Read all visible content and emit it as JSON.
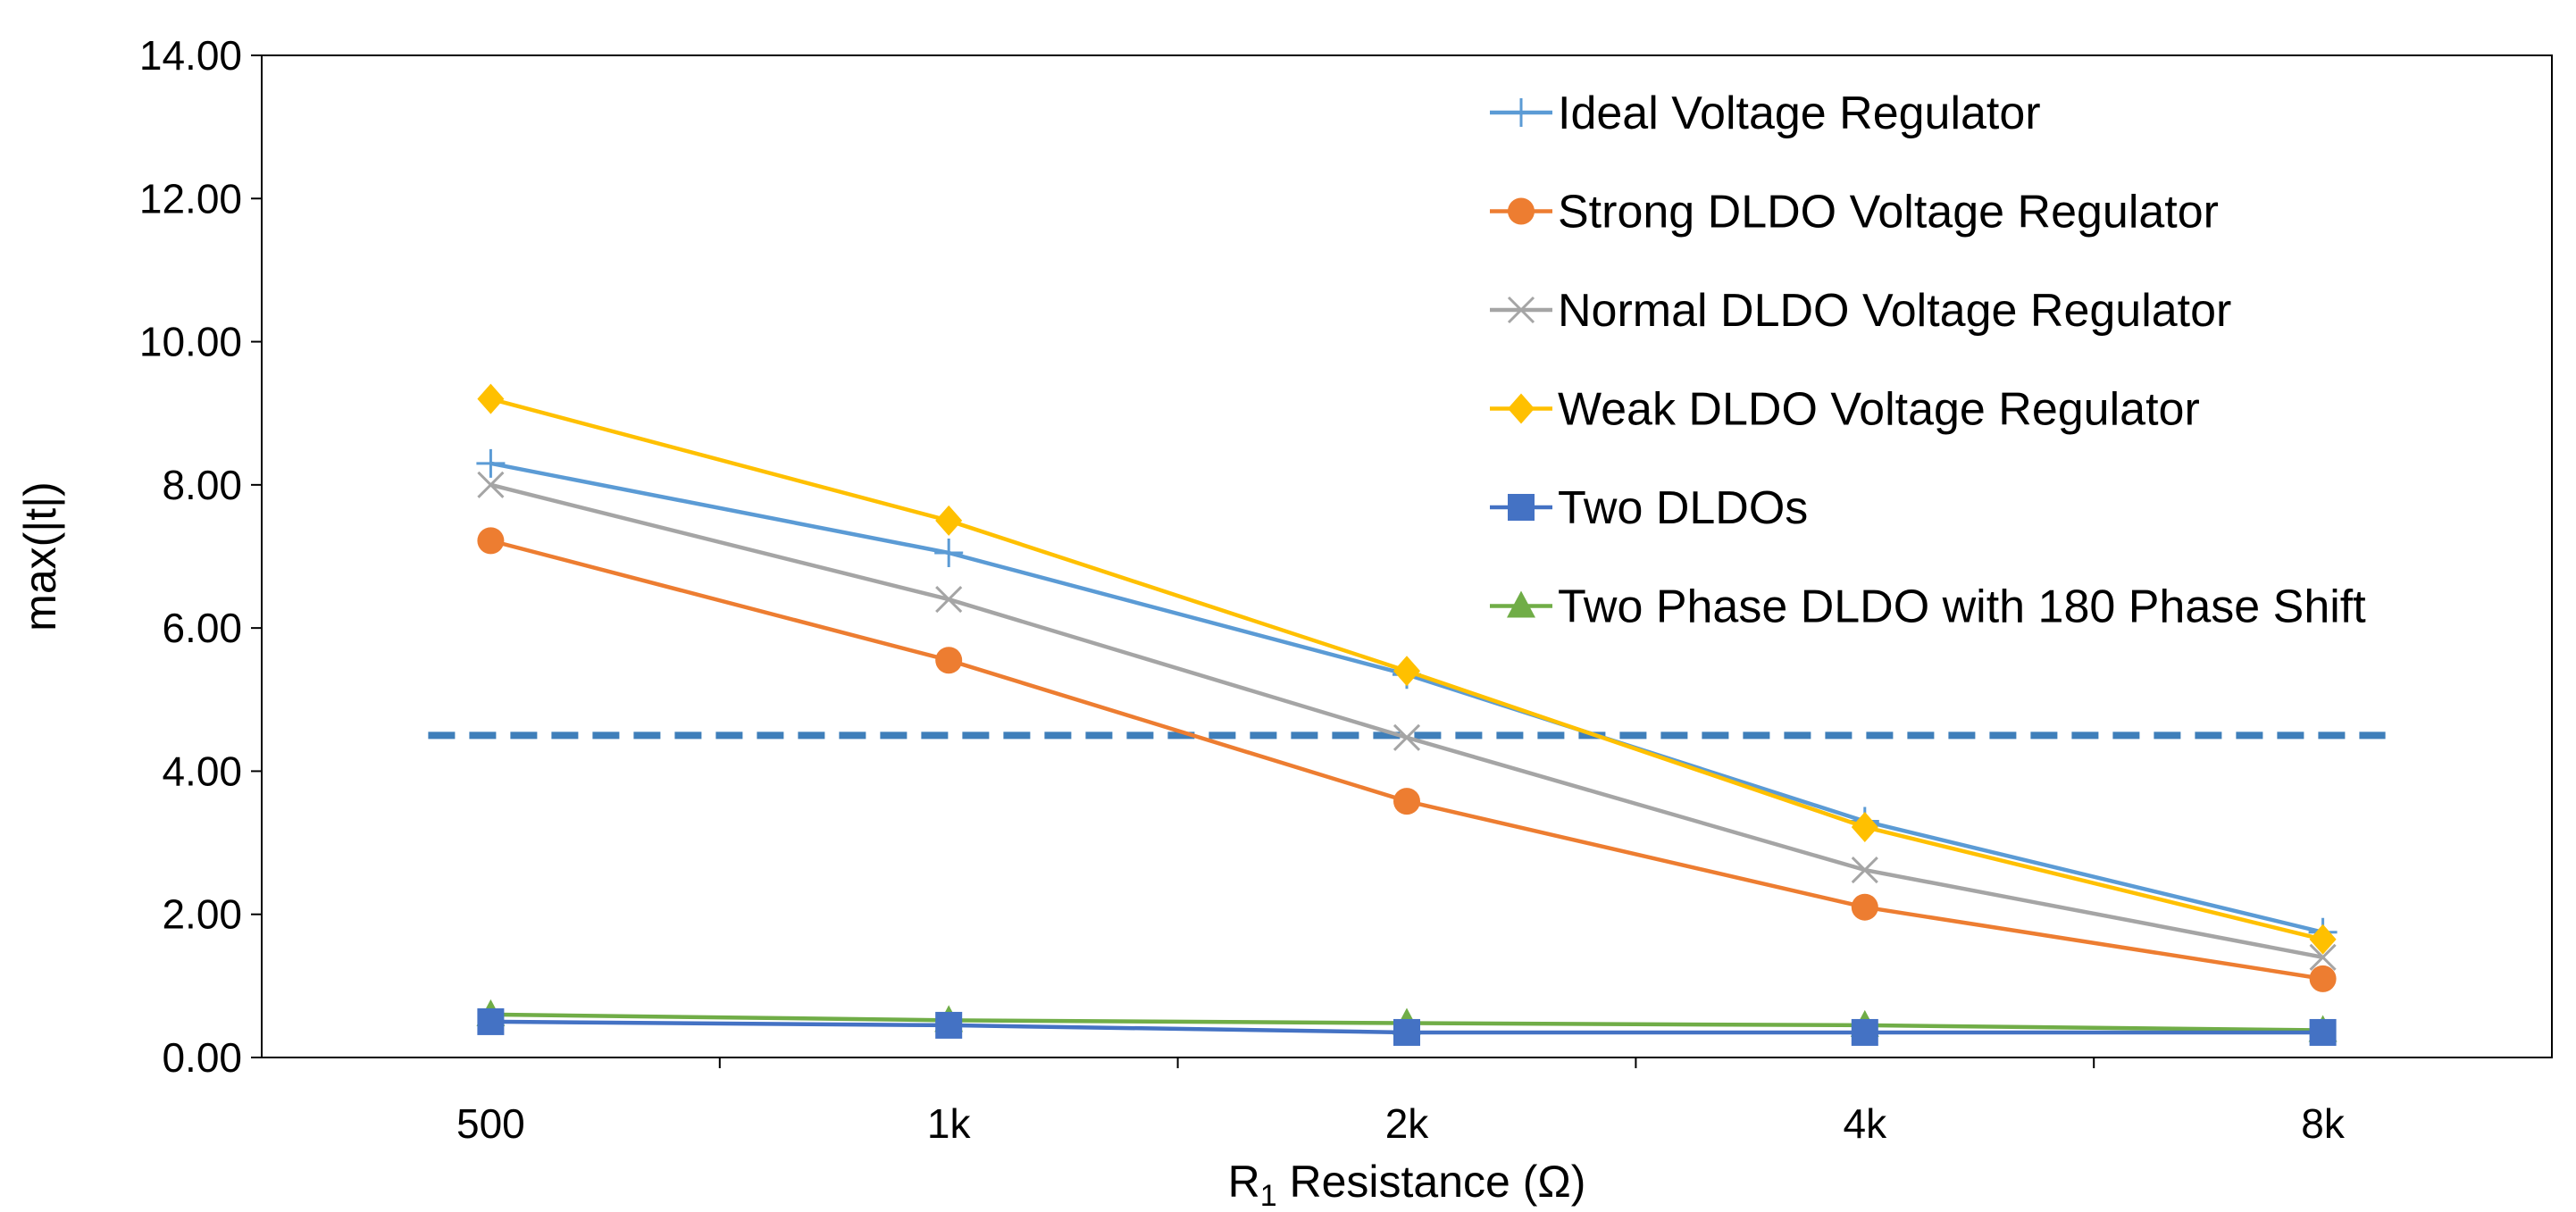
{
  "chart_data": {
    "type": "line",
    "title": "",
    "xlabel": {
      "main": "R",
      "sub": "1",
      "rest": " Resistance (Ω)"
    },
    "ylabel": "max(|t|)",
    "categories": [
      "500",
      "1k",
      "2k",
      "4k",
      "8k"
    ],
    "ylim": [
      0,
      14
    ],
    "yticks": [
      0,
      2,
      4,
      6,
      8,
      10,
      12,
      14
    ],
    "ytick_labels": [
      "0.00",
      "2.00",
      "4.00",
      "6.00",
      "8.00",
      "10.00",
      "12.00",
      "14.00"
    ],
    "grid": false,
    "legend_position": "top-right",
    "threshold": {
      "value": 4.5,
      "color": "#3f7fba",
      "style": "dashed"
    },
    "series": [
      {
        "name": "Ideal Voltage Regulator",
        "color": "#5b9bd5",
        "marker": "plus",
        "values": [
          8.3,
          7.05,
          5.35,
          3.3,
          1.75
        ]
      },
      {
        "name": "Strong DLDO Voltage Regulator",
        "color": "#ed7d31",
        "marker": "circle",
        "values": [
          7.22,
          5.55,
          3.58,
          2.1,
          1.1
        ]
      },
      {
        "name": "Normal DLDO Voltage Regulator",
        "color": "#a5a5a5",
        "marker": "x",
        "values": [
          8.0,
          6.4,
          4.47,
          2.62,
          1.4
        ]
      },
      {
        "name": "Weak DLDO Voltage Regulator",
        "color": "#ffc000",
        "marker": "diamond",
        "values": [
          9.2,
          7.5,
          5.4,
          3.22,
          1.65
        ]
      },
      {
        "name": "Two DLDOs",
        "color": "#4472c4",
        "marker": "square",
        "values": [
          0.5,
          0.45,
          0.35,
          0.35,
          0.35
        ]
      },
      {
        "name": "Two Phase DLDO with 180 Phase Shift",
        "color": "#70ad47",
        "marker": "triangle",
        "values": [
          0.6,
          0.52,
          0.48,
          0.45,
          0.38
        ]
      }
    ]
  }
}
